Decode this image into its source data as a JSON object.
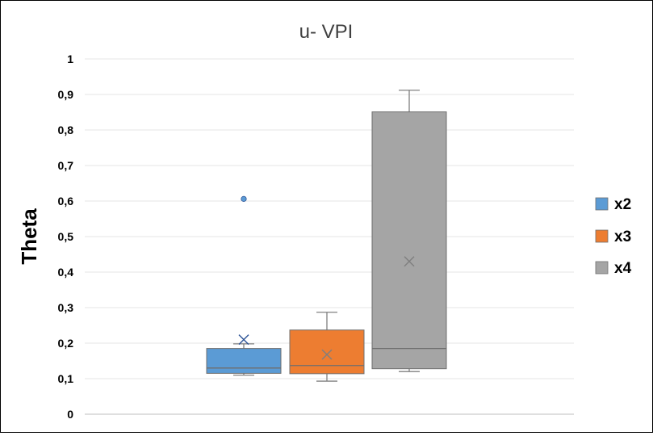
{
  "chart_data": {
    "type": "box",
    "title": "u- VPI",
    "ylabel": "Theta",
    "xlabel": "",
    "ylim": [
      0,
      1
    ],
    "yticks": [
      {
        "value": 0,
        "label": "0"
      },
      {
        "value": 0.1,
        "label": "0,1"
      },
      {
        "value": 0.2,
        "label": "0,2"
      },
      {
        "value": 0.3,
        "label": "0,3"
      },
      {
        "value": 0.4,
        "label": "0,4"
      },
      {
        "value": 0.5,
        "label": "0,5"
      },
      {
        "value": 0.6,
        "label": "0,6"
      },
      {
        "value": 0.7,
        "label": "0,7"
      },
      {
        "value": 0.8,
        "label": "0,8"
      },
      {
        "value": 0.9,
        "label": "0,9"
      },
      {
        "value": 1,
        "label": "1"
      }
    ],
    "grid": "horizontal",
    "legend_position": "right",
    "series": [
      {
        "name": "x2",
        "color": "#5b9bd5",
        "whisker_low": 0.11,
        "q1": 0.115,
        "median": 0.13,
        "q3": 0.185,
        "whisker_high": 0.198,
        "mean": 0.21,
        "outliers": [
          0.606
        ]
      },
      {
        "name": "x3",
        "color": "#ed7d31",
        "whisker_low": 0.093,
        "q1": 0.114,
        "median": 0.137,
        "q3": 0.237,
        "whisker_high": 0.287,
        "mean": 0.168,
        "outliers": []
      },
      {
        "name": "x4",
        "color": "#a5a5a5",
        "whisker_low": 0.12,
        "q1": 0.128,
        "median": 0.185,
        "q3": 0.851,
        "whisker_high": 0.912,
        "mean": 0.43,
        "outliers": []
      }
    ]
  }
}
